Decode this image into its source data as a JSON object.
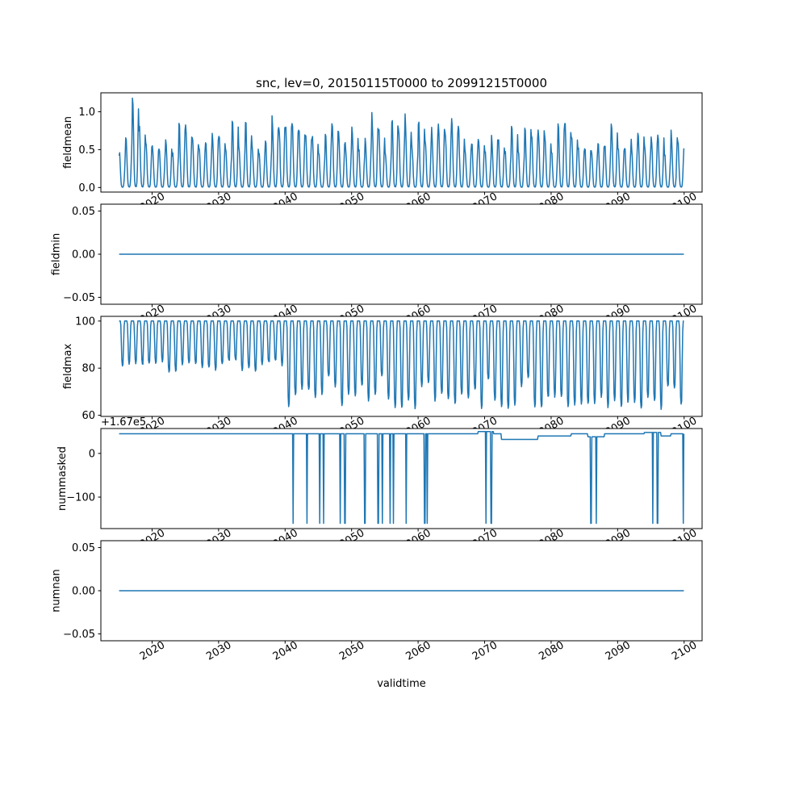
{
  "figure": {
    "title": "snc, lev=0, 20150115T0000 to 20991215T0000",
    "xlabel": "validtime",
    "line_color": "#1f77b4",
    "background": "#ffffff",
    "xlim": [
      2012.3,
      2102.7
    ],
    "xticks": [
      2020,
      2030,
      2040,
      2050,
      2060,
      2070,
      2080,
      2090,
      2100
    ],
    "xtick_labels": [
      "2020",
      "2030",
      "2040",
      "2050",
      "2060",
      "2070",
      "2080",
      "2090",
      "2100"
    ]
  },
  "chart_data": [
    {
      "type": "line",
      "name": "fieldmean",
      "ylabel": "fieldmean",
      "ylim": [
        -0.06,
        1.25
      ],
      "yticks": [
        0.0,
        0.5,
        1.0
      ],
      "ytick_labels": [
        "0.0",
        "0.5",
        "1.0"
      ],
      "x_range": [
        2015.04,
        2099.96
      ],
      "sampling": "monthly",
      "series": {
        "kind": "seasonal-spikes",
        "month_shape": [
          1,
          0.93,
          0.62,
          0.28,
          0.08,
          0.02,
          0.01,
          0.01,
          0.05,
          0.22,
          0.55,
          0.88
        ],
        "annual_peak_range": [
          0.45,
          0.92
        ],
        "peak_overrides": {
          "2017": 1.18
        },
        "noise": 0.18,
        "seed": 7
      }
    },
    {
      "type": "line",
      "name": "fieldmin",
      "ylabel": "fieldmin",
      "ylim": [
        -0.058,
        0.058
      ],
      "yticks": [
        -0.05,
        0.0,
        0.05
      ],
      "ytick_labels": [
        "−0.05",
        "0.00",
        "0.05"
      ],
      "x_range": [
        2015.04,
        2099.96
      ],
      "series": {
        "kind": "constant",
        "value": 0.0
      }
    },
    {
      "type": "line",
      "name": "fieldmax",
      "ylabel": "fieldmax",
      "ylim": [
        59.5,
        102
      ],
      "yticks": [
        60,
        80,
        100
      ],
      "ytick_labels": [
        "60",
        "80",
        "100"
      ],
      "x_range": [
        2015.04,
        2099.96
      ],
      "sampling": "monthly",
      "series": {
        "kind": "seasonal-plateau",
        "plateau": 100,
        "month_depth": [
          0,
          0,
          0,
          0.08,
          0.45,
          0.9,
          1,
          0.96,
          0.55,
          0.12,
          0,
          0
        ],
        "eras": [
          {
            "until": 2040,
            "summer_min_range": [
              79,
              84
            ]
          },
          {
            "until": 2101,
            "summer_min_range": [
              63,
              70
            ],
            "shallow_prob": 0.18,
            "shallow_range": [
              71,
              78
            ]
          }
        ],
        "seed": 11
      }
    },
    {
      "type": "line",
      "name": "nummasked",
      "ylabel": "nummasked",
      "offset_text": "+1.67e5",
      "value_offset": 167000,
      "ylim": [
        -172,
        57
      ],
      "yticks": [
        -100,
        0
      ],
      "ytick_labels": [
        "−100",
        "0"
      ],
      "x_range": [
        2015.04,
        2099.96
      ],
      "sampling": "monthly",
      "series": {
        "kind": "baseline-dips",
        "baseline_steps": [
          [
            2015.0,
            45
          ],
          [
            2069.0,
            50
          ],
          [
            2071.3,
            45
          ],
          [
            2072.5,
            32
          ],
          [
            2078.0,
            40
          ],
          [
            2083.0,
            45
          ],
          [
            2085.5,
            38
          ],
          [
            2088.0,
            45
          ],
          [
            2094.0,
            48
          ],
          [
            2096.5,
            40
          ],
          [
            2098.0,
            45
          ]
        ],
        "dip_value": -160,
        "dip_times": [
          2041.2,
          2043.3,
          2045.2,
          2045.8,
          2048.3,
          2049.0,
          2052.0,
          2054.0,
          2054.6,
          2055.8,
          2056.3,
          2058.2,
          2061.0,
          2061.4,
          2070.2,
          2071.0,
          2086.0,
          2086.8,
          2095.3,
          2096.0,
          2099.9
        ]
      }
    },
    {
      "type": "line",
      "name": "numnan",
      "ylabel": "numnan",
      "ylim": [
        -0.058,
        0.058
      ],
      "yticks": [
        -0.05,
        0.0,
        0.05
      ],
      "ytick_labels": [
        "−0.05",
        "0.00",
        "0.05"
      ],
      "x_range": [
        2015.04,
        2099.96
      ],
      "series": {
        "kind": "constant",
        "value": 0.0
      }
    }
  ]
}
